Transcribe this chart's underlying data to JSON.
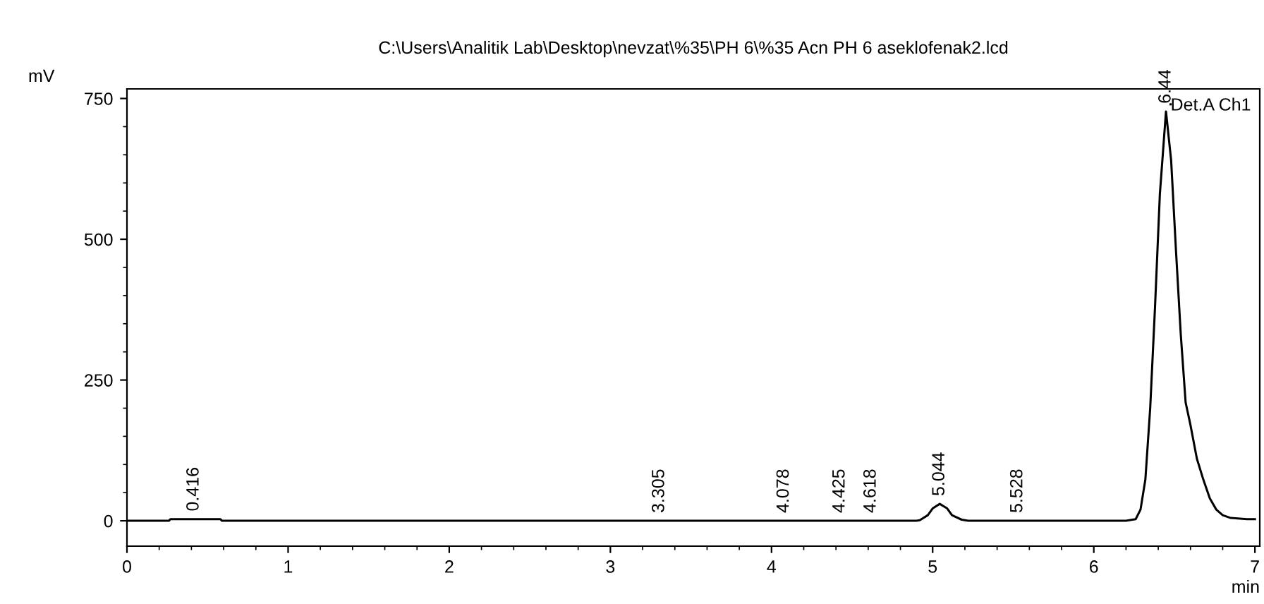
{
  "chart_data": {
    "type": "line",
    "title": "C:\\Users\\Analitik Lab\\Desktop\\nevzat\\%35\\PH 6\\%35 Acn PH 6 aseklofenak2.lcd",
    "ylabel": "mV",
    "xlabel": "min",
    "series": [
      {
        "name": "Det.A Ch1",
        "color": "#000000",
        "x": [
          0,
          0.26,
          0.27,
          0.58,
          0.59,
          1.0,
          2.0,
          3.0,
          4.0,
          4.9,
          4.92,
          4.97,
          5.0,
          5.044,
          5.09,
          5.12,
          5.18,
          5.22,
          6.0,
          6.2,
          6.26,
          6.29,
          6.32,
          6.35,
          6.38,
          6.41,
          6.448,
          6.48,
          6.51,
          6.54,
          6.57,
          6.6,
          6.64,
          6.68,
          6.72,
          6.76,
          6.8,
          6.85,
          6.95,
          7.0
        ],
        "values": [
          0,
          0,
          3,
          3,
          0,
          0,
          0,
          0,
          0,
          0,
          1,
          10,
          22,
          30,
          22,
          10,
          2,
          0,
          0,
          0,
          3,
          20,
          73,
          200,
          380,
          580,
          727,
          640,
          480,
          330,
          210,
          170,
          110,
          73,
          40,
          20,
          10,
          5,
          3,
          3
        ]
      }
    ],
    "annotations": [
      {
        "text": "0.416",
        "x": 0.416,
        "y": 3
      },
      {
        "text": "3.305",
        "x": 3.305,
        "y": 0
      },
      {
        "text": "4.078",
        "x": 4.078,
        "y": 0
      },
      {
        "text": "4.425",
        "x": 4.425,
        "y": 0
      },
      {
        "text": "4.618",
        "x": 4.618,
        "y": 0
      },
      {
        "text": "5.044",
        "x": 5.044,
        "y": 30
      },
      {
        "text": "5.528",
        "x": 5.528,
        "y": 0
      },
      {
        "text": "6.44",
        "x": 6.448,
        "y": 727
      }
    ],
    "xlim": [
      0,
      7.03
    ],
    "ylim": [
      -45,
      767
    ],
    "xticks": [
      0,
      1,
      2,
      3,
      4,
      5,
      6,
      7
    ],
    "yticks": [
      0,
      250,
      500,
      750
    ],
    "grid": false,
    "legend": "top right",
    "marker": "none",
    "line_style": "solid"
  }
}
